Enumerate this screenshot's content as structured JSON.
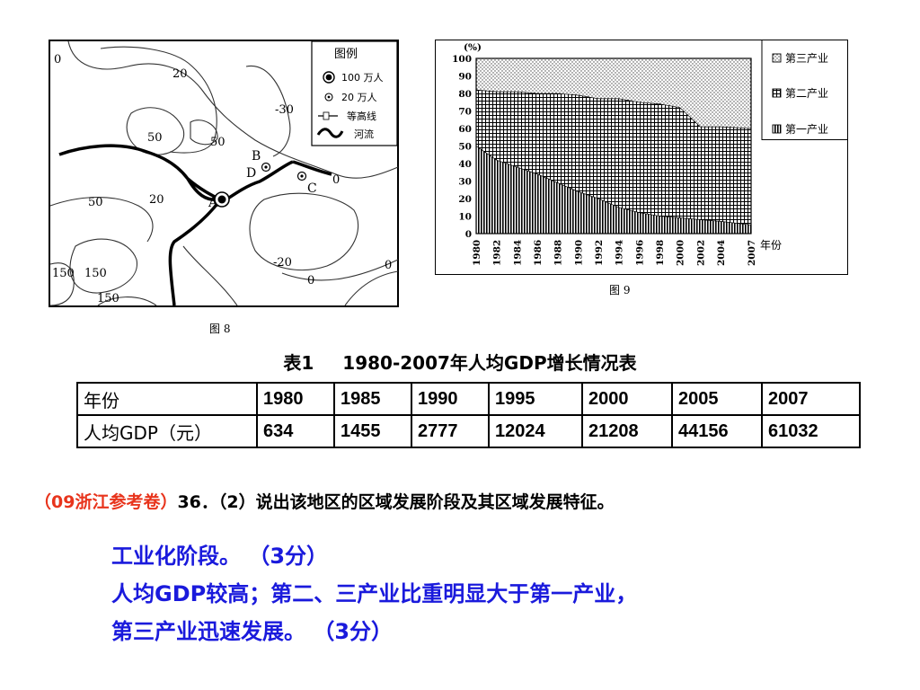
{
  "map": {
    "caption": "图 8",
    "legend": {
      "title": "图例",
      "items": [
        {
          "icon": "large-city-icon",
          "label": "100 万人"
        },
        {
          "icon": "small-city-icon",
          "label": "20 万人"
        },
        {
          "icon": "contour-line-icon",
          "label": "等高线"
        },
        {
          "icon": "river-icon",
          "label": "河流"
        }
      ]
    },
    "contour_labels": [
      "0",
      "20",
      "50",
      "50",
      "-30",
      "50",
      "20",
      "150",
      "150",
      "150",
      "-20",
      "0",
      "0",
      "0"
    ],
    "points": {
      "A": "A",
      "B": "B",
      "C": "C",
      "D": "D"
    }
  },
  "chart_data": {
    "type": "area",
    "caption": "图 9",
    "ylabel": "(%)",
    "xlabel": "年份",
    "ylim": [
      0,
      100
    ],
    "yticks": [
      0,
      10,
      20,
      30,
      40,
      50,
      60,
      70,
      80,
      90,
      100
    ],
    "x": [
      1980,
      1982,
      1984,
      1986,
      1988,
      1990,
      1992,
      1994,
      1996,
      1998,
      2000,
      2002,
      2004,
      2007
    ],
    "x_tick_labels": [
      "1980",
      "1982",
      "1984",
      "1986",
      "1988",
      "1990",
      "1992",
      "1994",
      "1996",
      "1998",
      "2000",
      "2002",
      "2004",
      "2007"
    ],
    "series": [
      {
        "name": "第一产业",
        "values": [
          50,
          42,
          38,
          34,
          29,
          24,
          20,
          15,
          12,
          10,
          9,
          8,
          7,
          5
        ]
      },
      {
        "name": "第二产业",
        "values": [
          32,
          39,
          43,
          46,
          51,
          55,
          57,
          62,
          63,
          64,
          63,
          53,
          54,
          55
        ]
      },
      {
        "name": "第三产业",
        "values": [
          18,
          19,
          19,
          20,
          20,
          21,
          23,
          23,
          25,
          26,
          28,
          39,
          39,
          40
        ]
      }
    ],
    "legend": [
      "第三产业",
      "第二产业",
      "第一产业"
    ],
    "legend_position": "right"
  },
  "table": {
    "title_no": "表1",
    "title": "1980-2007年人均GDP增长情况表",
    "row1_label": "年份",
    "row2_label": "人均GDP（元）",
    "years": [
      "1980",
      "1985",
      "1990",
      "1995",
      "2000",
      "2005",
      "2007"
    ],
    "gdp": [
      "634",
      "1455",
      "2777",
      "12024",
      "21208",
      "44156",
      "61032"
    ]
  },
  "question": {
    "source": "（09浙江参考卷）",
    "text": "36．（2）说出该地区的区域发展阶段及其区域发展特征。"
  },
  "answer": {
    "line1": "工业化阶段。 （3分）",
    "line2": "人均GDP较高；第二、三产业比重明显大于第一产业，",
    "line3": "第三产业迅速发展。 （3分）"
  },
  "colors": {
    "question_source": "#e8341c",
    "answer": "#1a1adc"
  }
}
